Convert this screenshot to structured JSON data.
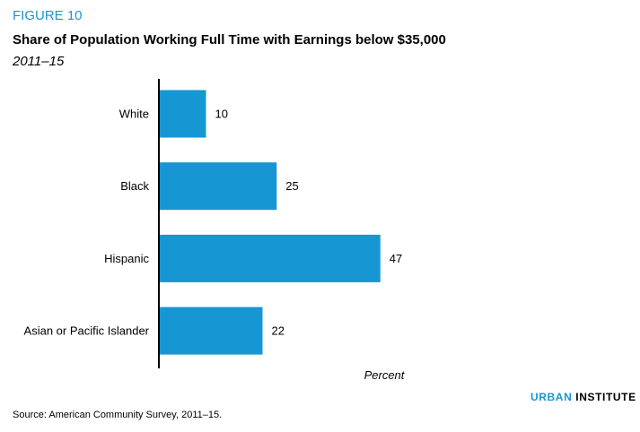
{
  "figure_label": "FIGURE 10",
  "title": "Share of Population Working Full Time with Earnings below $35,000",
  "subtitle": "2011–15",
  "source": "Source: American Community Survey, 2011–15.",
  "branding": {
    "urban": "URBAN",
    "institute": "INSTITUTE"
  },
  "colors": {
    "bar": "#1696d2",
    "accent": "#1696d2",
    "axis": "#000000"
  },
  "chart_data": {
    "type": "bar",
    "orientation": "horizontal",
    "categories": [
      "White",
      "Black",
      "Hispanic",
      "Asian or Pacific Islander"
    ],
    "values": [
      10,
      25,
      47,
      22
    ],
    "xlabel": "Percent",
    "ylabel": "",
    "xlim": [
      0,
      50
    ],
    "grid": false,
    "data_labels": true
  }
}
